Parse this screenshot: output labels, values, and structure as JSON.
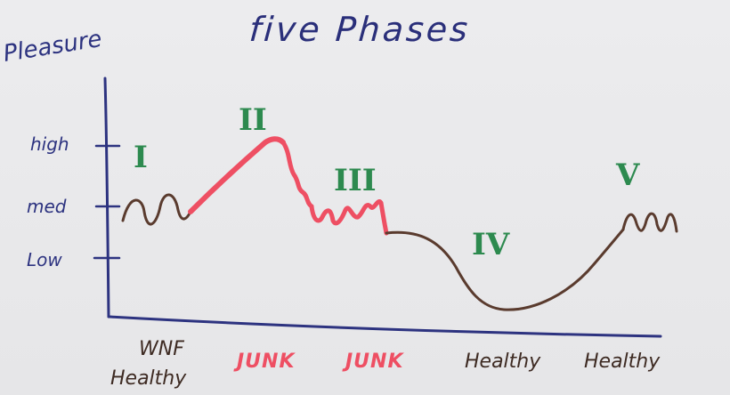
{
  "title": "five Phases",
  "axis": {
    "y_label": "Pleasure",
    "ticks": [
      "high",
      "med",
      "Low"
    ]
  },
  "phases": [
    "I",
    "II",
    "III",
    "IV",
    "V"
  ],
  "categories": [
    {
      "line1": "WNF",
      "line2": "Healthy",
      "color": "#3e2b23"
    },
    {
      "line1": "JUNK",
      "line2": "",
      "color": "#ee4f63"
    },
    {
      "line1": "JUNK",
      "line2": "",
      "color": "#ee4f63"
    },
    {
      "line1": "Healthy",
      "line2": "",
      "color": "#3e2b23"
    },
    {
      "line1": "Healthy",
      "line2": "",
      "color": "#3e2b23"
    }
  ],
  "colors": {
    "axis": "#2d3380",
    "healthy_curve": "#5a3b2e",
    "junk_curve": "#ee4f63",
    "phase_numerals": "#2d8a4f"
  }
}
